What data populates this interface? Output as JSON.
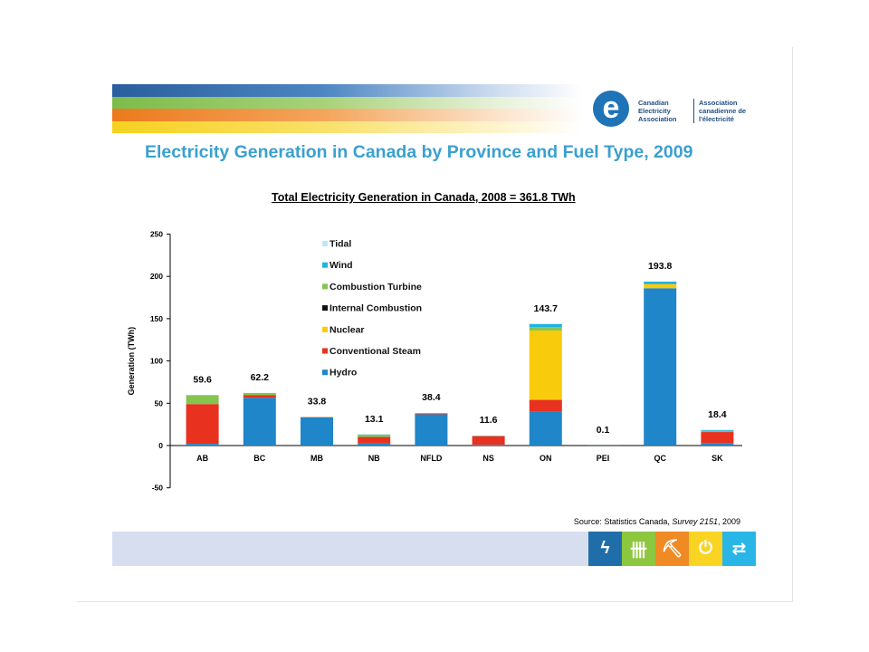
{
  "header": {
    "logo_glyph": "e",
    "logo_en": "Canadian Electricity Association",
    "logo_fr": "Association canadienne de l'électricité",
    "stripe_colors": [
      "#2a5e9e",
      "#7cbc4a",
      "#ec7a1c",
      "#f6d11e"
    ]
  },
  "slide": {
    "title": "Electricity Generation in Canada by Province and Fuel Type, 2009",
    "source_prefix": "Source: Statistics Canada, ",
    "source_italic": "Survey 2151",
    "source_suffix": ", 2009"
  },
  "footer": {
    "icons": [
      {
        "name": "lightning-icon",
        "glyph": "ϟ",
        "color": "#1f6ea9"
      },
      {
        "name": "transmission-tower-icon",
        "glyph": "卌",
        "color": "#8dc63f"
      },
      {
        "name": "worker-icon",
        "glyph": "⛏",
        "color": "#f08a24"
      },
      {
        "name": "power-icon",
        "glyph": "⏻",
        "color": "#f9d423"
      },
      {
        "name": "handshake-icon",
        "glyph": "⇄",
        "color": "#29b6e6"
      }
    ]
  },
  "chart_data": {
    "type": "bar",
    "stacked": true,
    "title": "Total Electricity Generation in Canada, 2008 = 361.8 TWh",
    "ylabel": "Generation (TWh)",
    "xlabel": "",
    "ylim": [
      -50,
      250
    ],
    "yticks": [
      -50,
      0,
      50,
      100,
      150,
      200,
      250
    ],
    "legend_position": "upper-left-inside",
    "categories": [
      "AB",
      "BC",
      "MB",
      "NB",
      "NFLD",
      "NS",
      "ON",
      "PEI",
      "QC",
      "SK"
    ],
    "totals_labels": [
      "59.6",
      "62.2",
      "33.8",
      "13.1",
      "38.4",
      "11.6",
      "143.7",
      "0.1",
      "193.8",
      "18.4"
    ],
    "series": [
      {
        "name": "Hydro",
        "color": "#1f86c9",
        "values": [
          2,
          56.5,
          33.3,
          2.5,
          37,
          0.8,
          40,
          0,
          186,
          3
        ]
      },
      {
        "name": "Conventional Steam",
        "color": "#e8311f",
        "values": [
          47,
          3,
          0.3,
          7.5,
          0.5,
          10.3,
          14,
          0,
          0,
          13
        ]
      },
      {
        "name": "Nuclear",
        "color": "#f8cb0c",
        "values": [
          0,
          0,
          0,
          0,
          0,
          0,
          82,
          0,
          4.6,
          0
        ]
      },
      {
        "name": "Internal Combustion",
        "color": "#111111",
        "values": [
          0,
          0.2,
          0,
          0.3,
          0.3,
          0,
          0,
          0,
          0.3,
          0
        ]
      },
      {
        "name": "Combustion Turbine",
        "color": "#86c451",
        "values": [
          10,
          2.5,
          0.2,
          2.5,
          0.4,
          0.3,
          4,
          0,
          0.6,
          1.4
        ]
      },
      {
        "name": "Wind",
        "color": "#1fb3e3",
        "values": [
          0.6,
          0,
          0,
          0.3,
          0.2,
          0.2,
          3.7,
          0.1,
          2.3,
          1
        ]
      },
      {
        "name": "Tidal",
        "color": "#bfe6f6",
        "values": [
          0,
          0,
          0,
          0,
          0,
          0,
          0,
          0,
          0,
          0
        ]
      }
    ],
    "legend_order": [
      "Tidal",
      "Wind",
      "Combustion Turbine",
      "Internal Combustion",
      "Nuclear",
      "Conventional Steam",
      "Hydro"
    ]
  }
}
